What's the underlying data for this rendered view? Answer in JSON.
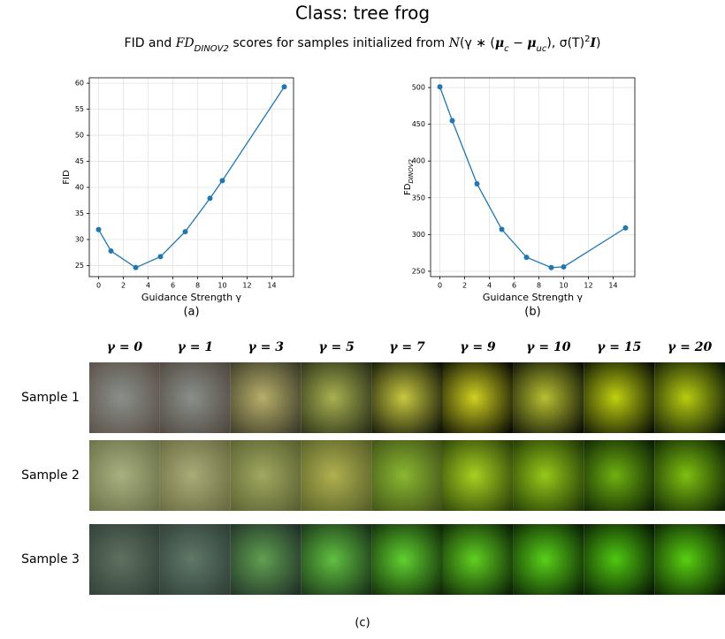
{
  "title": "Class: tree frog",
  "subtitle": [
    {
      "text": "FID and "
    },
    {
      "text": "FD",
      "style": "italic"
    },
    {
      "text": "DINOV2",
      "style": "sub"
    },
    {
      "text": " scores for samples initialized from "
    },
    {
      "text": "N",
      "style": "italic"
    },
    {
      "text": "(γ ∗ ("
    },
    {
      "text": "μ",
      "style": "bold-italic"
    },
    {
      "text": "c",
      "style": "sub"
    },
    {
      "text": " − "
    },
    {
      "text": "μ",
      "style": "bold-italic"
    },
    {
      "text": "uc",
      "style": "sub"
    },
    {
      "text": "), σ(T)"
    },
    {
      "text": "2",
      "style": "sup"
    },
    {
      "text": "I",
      "style": "bold-italic"
    },
    {
      "text": ")"
    }
  ],
  "chart_data": [
    {
      "type": "line",
      "caption": "(a)",
      "xlabel": "Guidance Strength γ",
      "ylabel": {
        "text": "FID"
      },
      "x": [
        0,
        1,
        3,
        5,
        7,
        9,
        10,
        15
      ],
      "values": [
        31.9,
        27.8,
        24.6,
        26.7,
        31.5,
        37.9,
        41.3,
        59.3
      ],
      "color": "#1f77b4",
      "xlim": [
        -0.75,
        15.75
      ],
      "ylim": [
        22.87,
        61.04
      ],
      "xticks": [
        0,
        2,
        4,
        6,
        8,
        10,
        12,
        14
      ],
      "yticks": [
        25,
        30,
        35,
        40,
        45,
        50,
        55,
        60
      ],
      "grid": true
    },
    {
      "type": "line",
      "caption": "(b)",
      "xlabel": "Guidance Strength γ",
      "ylabel": {
        "text": "FD",
        "sub": "DINOV2"
      },
      "x": [
        0,
        1,
        3,
        5,
        7,
        9,
        10,
        15
      ],
      "values": [
        501,
        455,
        369,
        307,
        269,
        255,
        256,
        309
      ],
      "color": "#1f77b4",
      "xlim": [
        -0.75,
        15.75
      ],
      "ylim": [
        242.7,
        513.3
      ],
      "xticks": [
        0,
        2,
        4,
        6,
        8,
        10,
        12,
        14
      ],
      "yticks": [
        250,
        300,
        350,
        400,
        450,
        500
      ],
      "grid": true
    }
  ],
  "grid": {
    "columns": [
      "γ = 0",
      "γ = 1",
      "γ = 3",
      "γ = 5",
      "γ = 7",
      "γ = 9",
      "γ = 10",
      "γ = 15",
      "γ = 20"
    ],
    "rows": [
      "Sample 1",
      "Sample 2",
      "Sample 3"
    ],
    "caption": "(c)"
  }
}
